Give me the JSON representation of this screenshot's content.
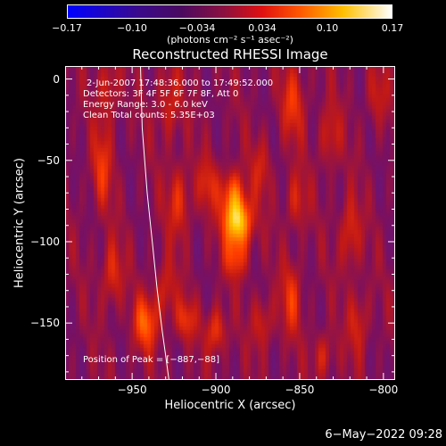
{
  "colorbar": {
    "ticks": [
      "−0.17",
      "−0.10",
      "−0.034",
      "0.034",
      "0.10",
      "0.17"
    ],
    "label": "(photons cm⁻² s⁻¹ asec⁻²)"
  },
  "chart_data": {
    "type": "heatmap",
    "title": "Reconstructed RHESSI Image",
    "xlabel": "Heliocentric X (arcsec)",
    "ylabel": "Heliocentric Y (arcsec)",
    "xlim": [
      -990,
      -793
    ],
    "ylim": [
      -185,
      8
    ],
    "xticks": [
      "−950",
      "−900",
      "−850",
      "−800"
    ],
    "xtick_values": [
      -950,
      -900,
      -850,
      -800
    ],
    "yticks": [
      "0",
      "−50",
      "−100",
      "−150"
    ],
    "ytick_values": [
      0,
      -50,
      -100,
      -150
    ],
    "zlim": [
      -0.17,
      0.17
    ],
    "colormap": [
      "#0000ff",
      "#3a0a8a",
      "#5a1a90",
      "#7a1060",
      "#c01818",
      "#ff3c00",
      "#ff8c00",
      "#ffd000",
      "#ffffff"
    ],
    "peak": {
      "x": -887,
      "y": -88
    },
    "limb_curve": {
      "x": [
        -945,
        -944,
        -941,
        -938,
        -935,
        -932,
        -930,
        -928
      ],
      "y": [
        8,
        -30,
        -70,
        -100,
        -130,
        -155,
        -170,
        -185
      ]
    }
  },
  "annotations": {
    "time": "2-Jun-2007 17:48:36.000 to 17:49:52.000",
    "detectors": "Detectors: 3F 4F 5F 6F 7F 8F, Att 0",
    "energy": "Energy Range: 3.0 - 6.0 keV",
    "clean": "Clean      Total counts: 5.35E+03",
    "peak_text": "Position of Peak = [−887,−88]"
  },
  "footer": {
    "date": "6−May−2022 09:28"
  }
}
